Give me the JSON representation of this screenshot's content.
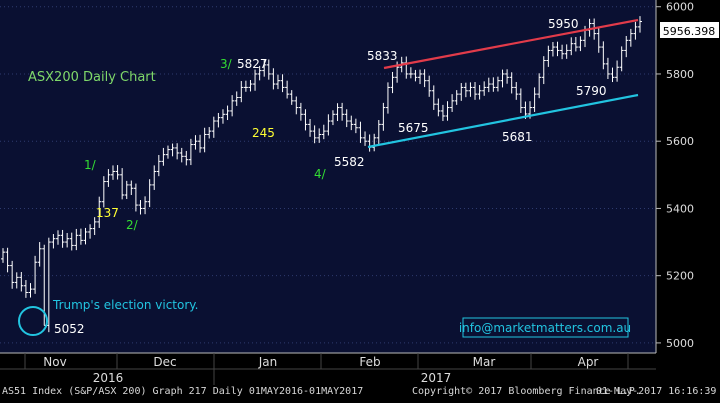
{
  "chart_data": {
    "type": "bar",
    "subtype": "ohlc-daily",
    "title": "ASX200 Daily Chart",
    "colors": {
      "background": "#0a1032",
      "bars": "#ffffff",
      "title": "#7fd86a",
      "wave_label": "#33dd33",
      "number_label": "#ffff33",
      "price_label": "#ffffff",
      "resistance_line": "#e23b4a",
      "support_line": "#22c4e0",
      "annotation": "#22c4e0"
    },
    "ylim": [
      4970,
      6020
    ],
    "grid": true,
    "y_ticks": [
      {
        "label": "5000",
        "value": 5000
      },
      {
        "label": "5200",
        "value": 5200
      },
      {
        "label": "5400",
        "value": 5400
      },
      {
        "label": "5600",
        "value": 5600
      },
      {
        "label": "5800",
        "value": 5800
      },
      {
        "label": "6000",
        "value": 6000
      }
    ],
    "x_month_labels": [
      "Nov",
      "Dec",
      "Jan",
      "Feb",
      "Mar",
      "Apr"
    ],
    "x_year_labels": [
      "2016",
      "2017"
    ],
    "last_price": "5956.398",
    "closes": [
      5270,
      5230,
      5180,
      5195,
      5170,
      5150,
      5160,
      5240,
      5280,
      5052,
      5300,
      5310,
      5320,
      5300,
      5310,
      5290,
      5320,
      5305,
      5330,
      5340,
      5360,
      5420,
      5480,
      5500,
      5510,
      5500,
      5440,
      5470,
      5460,
      5410,
      5400,
      5420,
      5470,
      5510,
      5540,
      5560,
      5575,
      5580,
      5565,
      5555,
      5545,
      5590,
      5600,
      5580,
      5620,
      5630,
      5660,
      5670,
      5680,
      5690,
      5720,
      5730,
      5760,
      5760,
      5770,
      5800,
      5810,
      5827,
      5800,
      5770,
      5780,
      5760,
      5740,
      5720,
      5700,
      5680,
      5650,
      5630,
      5610,
      5620,
      5630,
      5660,
      5680,
      5700,
      5680,
      5660,
      5650,
      5640,
      5610,
      5600,
      5582,
      5610,
      5650,
      5700,
      5760,
      5790,
      5820,
      5833,
      5800,
      5800,
      5790,
      5800,
      5780,
      5750,
      5710,
      5690,
      5675,
      5700,
      5720,
      5740,
      5760,
      5750,
      5760,
      5740,
      5750,
      5760,
      5770,
      5760,
      5780,
      5800,
      5790,
      5760,
      5740,
      5700,
      5681,
      5700,
      5740,
      5790,
      5840,
      5870,
      5880,
      5870,
      5860,
      5870,
      5890,
      5880,
      5900,
      5930,
      5950,
      5920,
      5880,
      5830,
      5800,
      5790,
      5820,
      5870,
      5900,
      5920,
      5940,
      5956
    ]
  },
  "labels": {
    "wave_1": "1/",
    "wave_2": "2/",
    "wave_3": "3/",
    "wave_4": "4/",
    "price_5827": "5827",
    "price_5833": "5833",
    "price_5950": "5950",
    "price_5675": "5675",
    "price_5681": "5681",
    "price_5790": "5790",
    "price_5582": "5582",
    "price_5052": "5052",
    "count_137": "137",
    "count_245": "245",
    "election": "Trump's election victory.",
    "website": "info@marketmatters.com.au"
  },
  "footer": {
    "left": "AS51 Index (S&P/ASX 200) Graph 217  Daily 01MAY2016-01MAY2017",
    "center": "Copyright© 2017 Bloomberg Finance L.P.",
    "right": "01-May-2017 16:16:39"
  }
}
